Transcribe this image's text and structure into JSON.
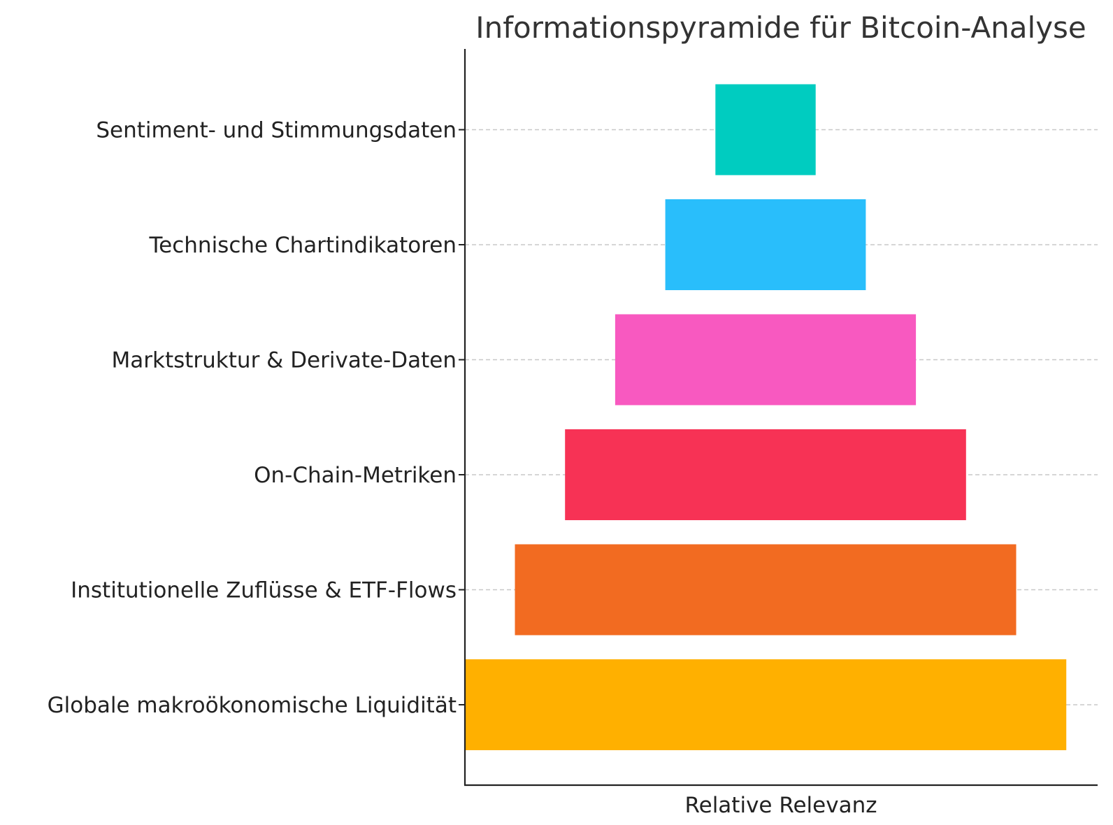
{
  "chart_data": {
    "type": "bar",
    "orientation": "horizontal-centered",
    "title": "Informationspyramide für Bitcoin-Analyse",
    "xlabel": "Relative Relevanz",
    "ylabel": "",
    "xlim": [
      -6,
      6
    ],
    "grid": "horizontal dashed",
    "categories": [
      "Globale makroökonomische Liquidität",
      "Institutionelle Zuflüsse & ETF-Flows",
      "On-Chain-Metriken",
      "Marktstruktur & Derivate-Daten",
      "Technische Chartindikatoren",
      "Sentiment- und Stimmungsdaten"
    ],
    "values": [
      6,
      5,
      4,
      3,
      2,
      1
    ],
    "colors": [
      "#FFB000",
      "#F26B21",
      "#F73255",
      "#F859C0",
      "#29BEFB",
      "#00CCC0"
    ]
  }
}
